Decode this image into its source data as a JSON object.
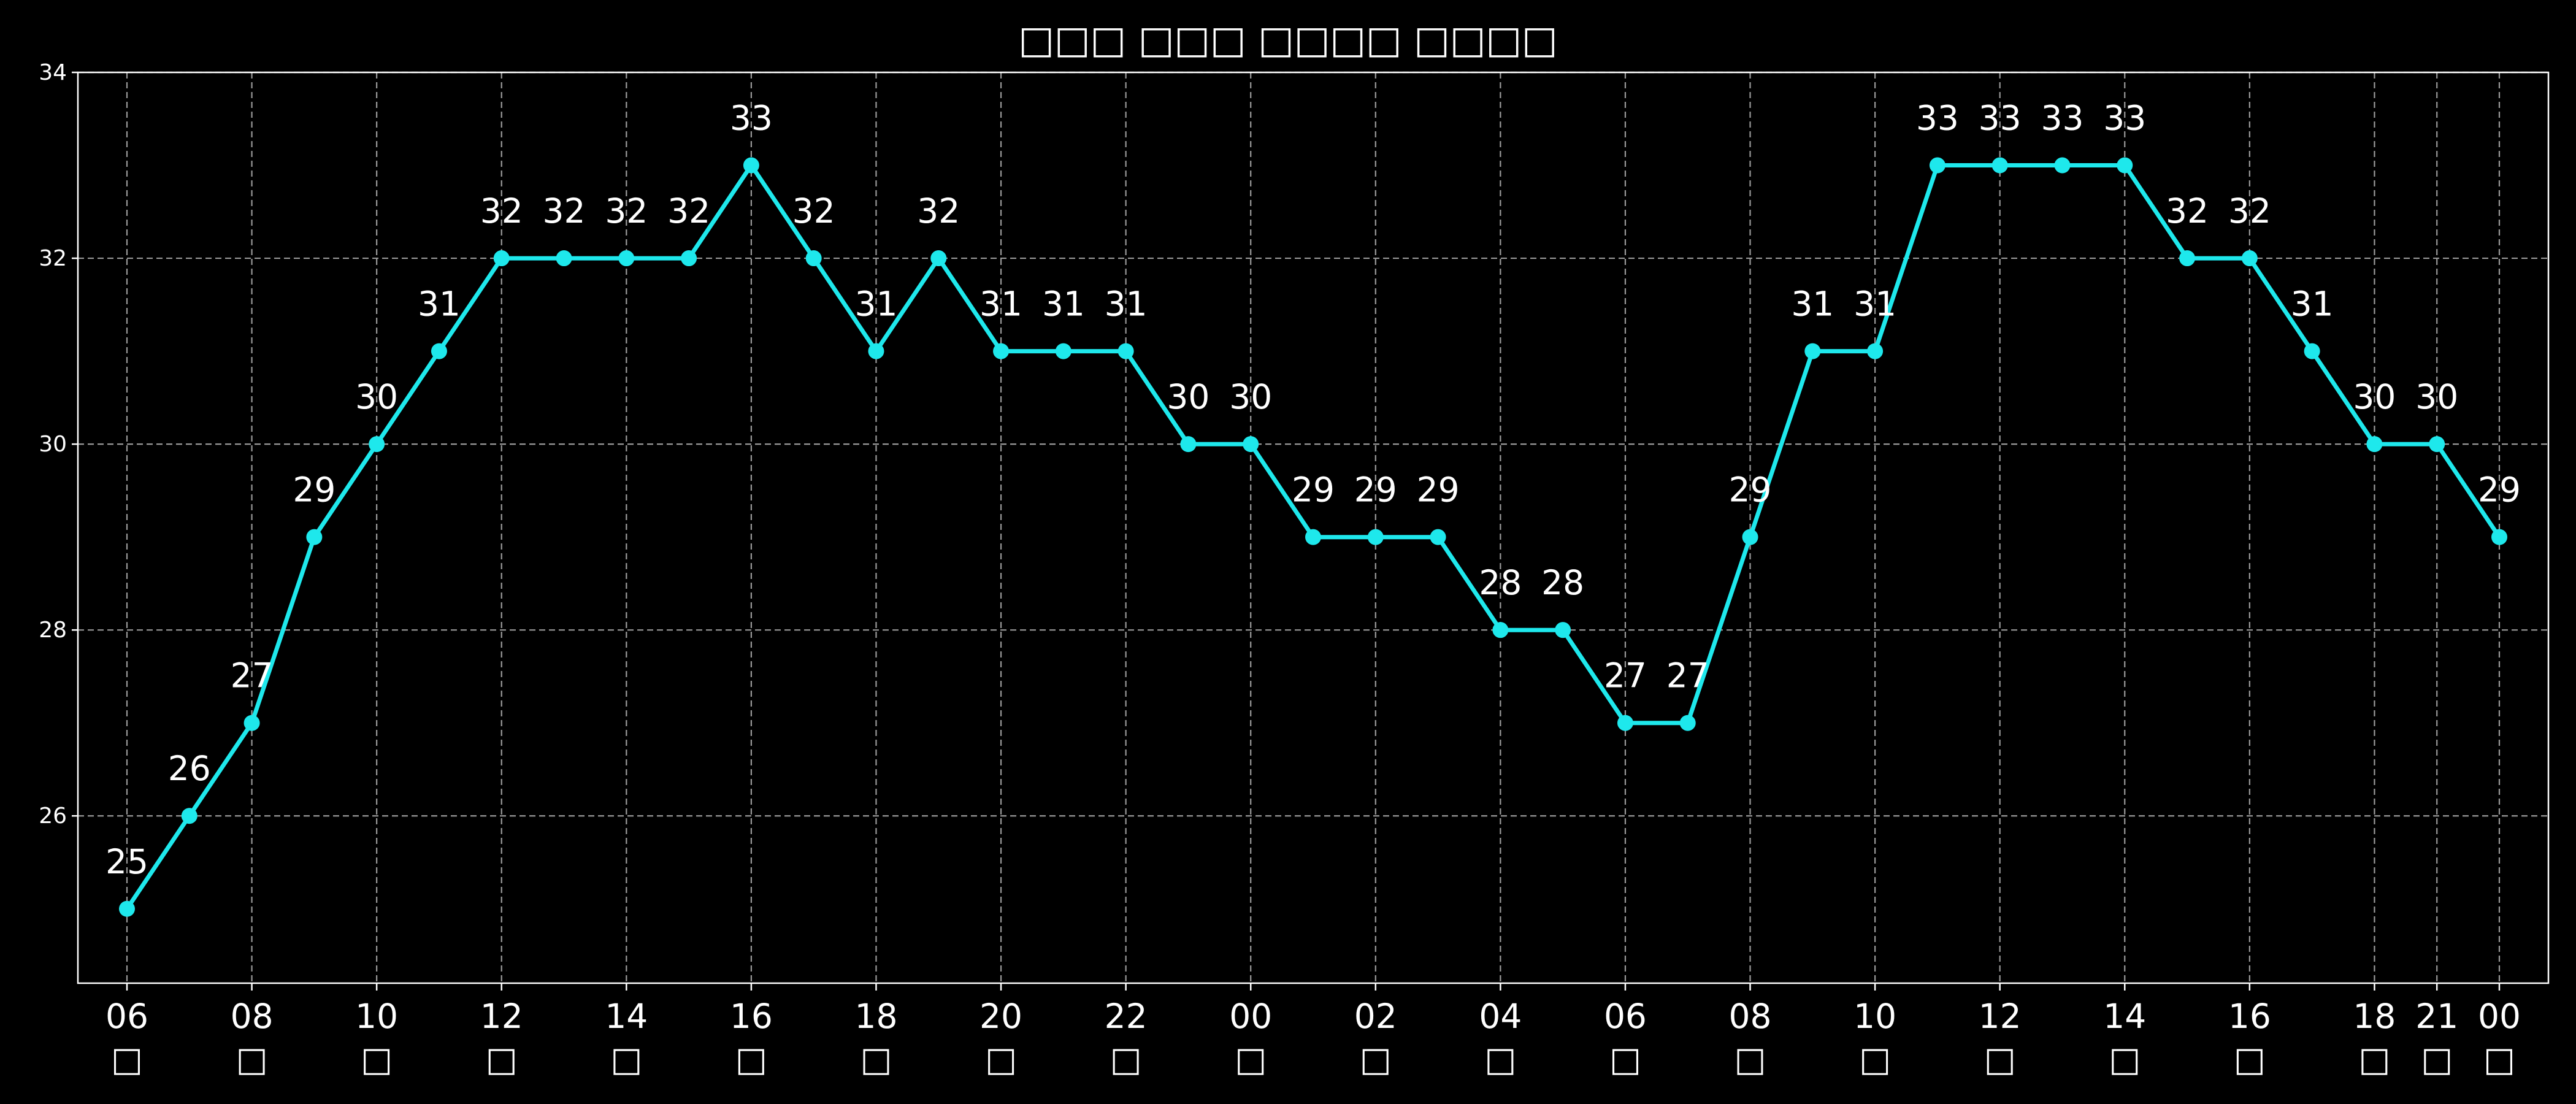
{
  "chart_data": {
    "type": "line",
    "title": "□□□ □□□ □□□□ □□□□",
    "xlabel": "",
    "ylabel": "",
    "ylim": [
      24.2,
      34
    ],
    "yticks": [
      "26",
      "28",
      "30",
      "32",
      "34"
    ],
    "grid": true,
    "x": [
      "06",
      "07",
      "08",
      "09",
      "10",
      "11",
      "12",
      "13",
      "14",
      "15",
      "16",
      "17",
      "18",
      "19",
      "20",
      "21",
      "22",
      "23",
      "00",
      "01",
      "02",
      "03",
      "04",
      "05",
      "06",
      "07",
      "08",
      "09",
      "10",
      "11",
      "12",
      "13",
      "14",
      "15",
      "16",
      "17",
      "18",
      "21",
      "00"
    ],
    "xtick_labels": [
      {
        "index": 0,
        "hour": "06",
        "unit": "□"
      },
      {
        "index": 2,
        "hour": "08",
        "unit": "□"
      },
      {
        "index": 4,
        "hour": "10",
        "unit": "□"
      },
      {
        "index": 6,
        "hour": "12",
        "unit": "□"
      },
      {
        "index": 8,
        "hour": "14",
        "unit": "□"
      },
      {
        "index": 10,
        "hour": "16",
        "unit": "□"
      },
      {
        "index": 12,
        "hour": "18",
        "unit": "□"
      },
      {
        "index": 14,
        "hour": "20",
        "unit": "□"
      },
      {
        "index": 16,
        "hour": "22",
        "unit": "□"
      },
      {
        "index": 18,
        "hour": "00",
        "unit": "□"
      },
      {
        "index": 20,
        "hour": "02",
        "unit": "□"
      },
      {
        "index": 22,
        "hour": "04",
        "unit": "□"
      },
      {
        "index": 24,
        "hour": "06",
        "unit": "□"
      },
      {
        "index": 26,
        "hour": "08",
        "unit": "□"
      },
      {
        "index": 28,
        "hour": "10",
        "unit": "□"
      },
      {
        "index": 30,
        "hour": "12",
        "unit": "□"
      },
      {
        "index": 32,
        "hour": "14",
        "unit": "□"
      },
      {
        "index": 34,
        "hour": "16",
        "unit": "□"
      },
      {
        "index": 36,
        "hour": "18",
        "unit": "□"
      },
      {
        "index": 37,
        "hour": "21",
        "unit": "□"
      },
      {
        "index": 38,
        "hour": "00",
        "unit": "□"
      }
    ],
    "series": [
      {
        "values": [
          25,
          26,
          27,
          29,
          30,
          31,
          32,
          32,
          32,
          32,
          33,
          32,
          31,
          32,
          31,
          31,
          31,
          30,
          30,
          29,
          29,
          29,
          28,
          28,
          27,
          27,
          29,
          31,
          31,
          33,
          33,
          33,
          33,
          32,
          32,
          31,
          30,
          30,
          29
        ]
      }
    ]
  },
  "colors": {
    "background": "#000000",
    "line": "#1ee8ec",
    "grid": "#9a9a9a",
    "text": "#ffffff",
    "axes": "#ffffff"
  }
}
